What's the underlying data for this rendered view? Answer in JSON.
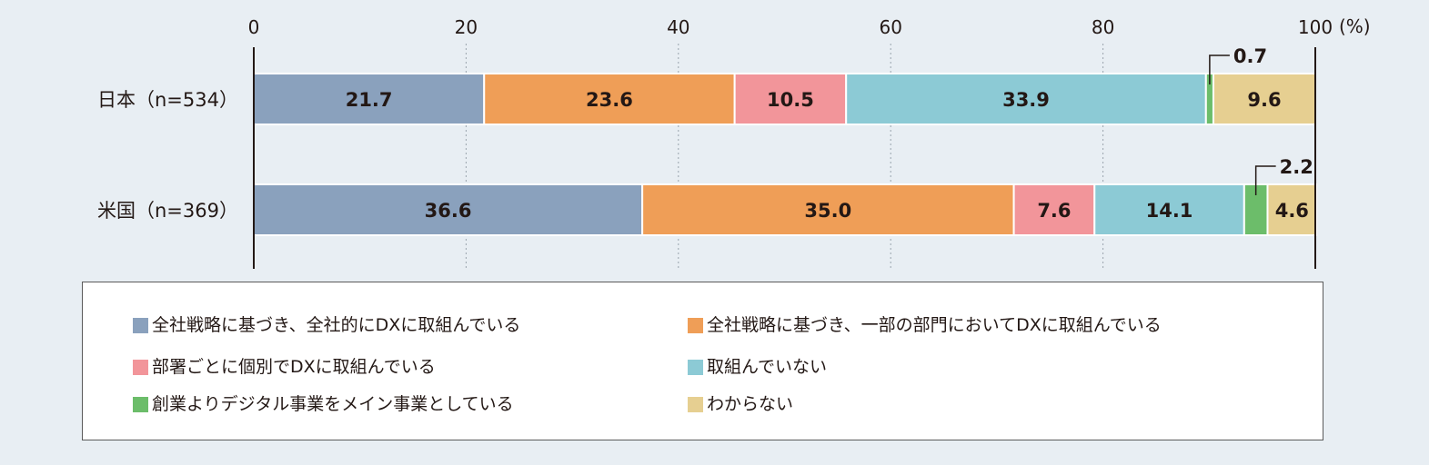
{
  "chart_data": {
    "type": "bar",
    "orientation": "horizontal",
    "stacked": true,
    "unit": "(%)",
    "xlim": [
      0,
      100
    ],
    "ticks": [
      0,
      20,
      40,
      60,
      80,
      100
    ],
    "grid": true,
    "legend_position": "bottom",
    "categories": [
      "日本（n=534）",
      "米国（n=369）"
    ],
    "series": [
      {
        "name": "全社戦略に基づき、全社的にDXに取組んでいる",
        "color": "#8aa1bd",
        "values": [
          21.7,
          36.6
        ]
      },
      {
        "name": "全社戦略に基づき、一部の部門においてDXに取組んでいる",
        "color": "#ef9e57",
        "values": [
          23.6,
          35.0
        ]
      },
      {
        "name": "部署ごとに個別でDXに取組んでいる",
        "color": "#f2959a",
        "values": [
          10.5,
          7.6
        ]
      },
      {
        "name": "取組んでいない",
        "color": "#8ccad5",
        "values": [
          33.9,
          14.1
        ]
      },
      {
        "name": "創業よりデジタル事業をメイン事業としている",
        "color": "#6cbd6a",
        "values": [
          0.7,
          2.2
        ]
      },
      {
        "name": "わからない",
        "color": "#e6cf91",
        "values": [
          9.6,
          4.6
        ]
      }
    ],
    "value_labels": [
      [
        "21.7",
        "23.6",
        "10.5",
        "33.9",
        "0.7",
        "9.6"
      ],
      [
        "36.6",
        "35.0",
        "7.6",
        "14.1",
        "2.2",
        "4.6"
      ]
    ]
  }
}
